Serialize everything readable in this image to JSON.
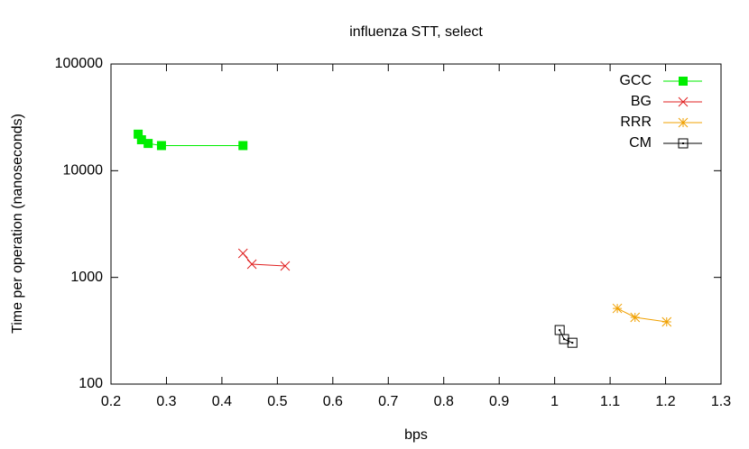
{
  "chart_data": {
    "type": "line",
    "title": "influenza STT, select",
    "x_label": "bps",
    "y_label": "Time per operation (nanoseconds)",
    "xlim": [
      0.2,
      1.3
    ],
    "xticks": [
      0.2,
      0.3,
      0.4,
      0.5,
      0.6,
      0.7,
      0.8,
      0.9,
      1,
      1.1,
      1.2,
      1.3
    ],
    "ylim": [
      100,
      100000
    ],
    "yticks": [
      100,
      1000,
      10000,
      100000
    ],
    "y_log": true,
    "legend": "top-right",
    "series": [
      {
        "name": "GCC",
        "color": "#00ee00",
        "marker": "filled-square",
        "x": [
          0.249,
          0.255,
          0.267,
          0.291,
          0.438
        ],
        "values": [
          22000,
          19500,
          18000,
          17200,
          17200
        ]
      },
      {
        "name": "BG",
        "color": "#e02020",
        "marker": "cross",
        "x": [
          0.438,
          0.454,
          0.514
        ],
        "values": [
          1680,
          1330,
          1280
        ]
      },
      {
        "name": "RRR",
        "color": "#f0a000",
        "marker": "star",
        "x": [
          1.113,
          1.145,
          1.202
        ],
        "values": [
          512,
          422,
          383
        ]
      },
      {
        "name": "CM",
        "color": "#000000",
        "marker": "dotted-square",
        "x": [
          1.009,
          1.017,
          1.032
        ],
        "values": [
          321,
          264,
          244
        ]
      }
    ]
  }
}
